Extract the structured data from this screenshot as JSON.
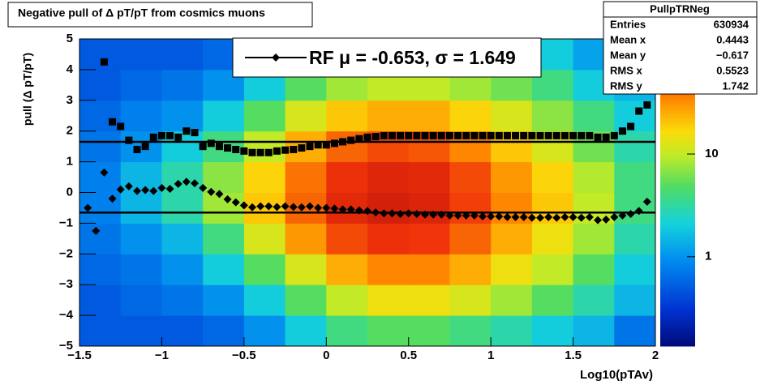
{
  "chart_data": {
    "type": "heatmap-profile",
    "title": "Negative pull of Δ pT/pT from cosmics muons",
    "x_label": "Log10(pTAv)",
    "y_label": "pull (Δ pT/pT)",
    "xlim": [
      -1.5,
      2
    ],
    "ylim": [
      -5,
      5
    ],
    "xticks": [
      {
        "value": -1.5,
        "label": "−1.5"
      },
      {
        "value": -1,
        "label": "−1"
      },
      {
        "value": -0.5,
        "label": "−0.5"
      },
      0,
      0.5,
      1,
      1.5,
      2
    ],
    "yticks": [
      {
        "value": -5,
        "label": "−5"
      },
      {
        "value": -4,
        "label": "−4"
      },
      {
        "value": -3,
        "label": "−3"
      },
      {
        "value": -2,
        "label": "−2"
      },
      {
        "value": -1,
        "label": "−1"
      },
      0,
      1,
      2,
      3,
      4,
      5
    ],
    "log_z": true,
    "zlim": [
      0.135,
      132
    ],
    "zticks": [
      1,
      10
    ],
    "xbins": [
      -1.5,
      -1.25,
      -1,
      -0.75,
      -0.5,
      -0.25,
      0,
      0.25,
      0.5,
      0.75,
      1,
      1.25,
      1.5,
      1.75,
      2
    ],
    "ybins": [
      -5,
      -4,
      -3,
      -2,
      -1,
      0,
      1,
      2,
      3,
      4,
      5
    ],
    "z": [
      [
        0.5,
        0.5,
        0.5,
        0.6,
        1,
        2,
        4,
        5,
        5,
        4,
        3,
        2,
        1.5,
        0.7
      ],
      [
        0.5,
        0.6,
        0.7,
        1,
        2,
        5,
        10,
        15,
        15,
        12,
        8,
        5,
        3,
        1.5
      ],
      [
        0.6,
        0.7,
        1,
        2,
        5,
        12,
        25,
        35,
        35,
        25,
        15,
        10,
        5,
        2
      ],
      [
        0.7,
        1,
        1.5,
        4,
        12,
        30,
        55,
        70,
        65,
        45,
        25,
        15,
        8,
        3
      ],
      [
        0.8,
        1.5,
        3,
        8,
        20,
        45,
        80,
        100,
        90,
        60,
        35,
        20,
        10,
        4
      ],
      [
        0.8,
        1.5,
        3,
        7,
        18,
        40,
        70,
        85,
        80,
        55,
        30,
        18,
        9,
        4
      ],
      [
        0.7,
        1,
        2,
        4,
        10,
        25,
        45,
        55,
        50,
        35,
        20,
        12,
        6,
        3
      ],
      [
        0.6,
        0.8,
        1,
        2,
        5,
        12,
        20,
        25,
        25,
        18,
        12,
        7,
        4,
        2
      ],
      [
        0.5,
        0.6,
        0.7,
        1,
        2,
        5,
        8,
        10,
        10,
        8,
        6,
        4,
        2,
        1.5
      ],
      [
        0.5,
        0.5,
        0.5,
        0.6,
        1,
        2,
        3,
        4,
        4,
        3,
        3,
        2,
        1.2,
        0.8
      ]
    ],
    "x": [
      -1.45,
      -1.4,
      -1.35,
      -1.3,
      -1.25,
      -1.2,
      -1.15,
      -1.1,
      -1.05,
      -1,
      -0.95,
      -0.9,
      -0.85,
      -0.8,
      -0.75,
      -0.7,
      -0.65,
      -0.6,
      -0.55,
      -0.5,
      -0.45,
      -0.4,
      -0.35,
      -0.3,
      -0.25,
      -0.2,
      -0.15,
      -0.1,
      -0.05,
      0,
      0.05,
      0.1,
      0.15,
      0.2,
      0.25,
      0.3,
      0.35,
      0.4,
      0.45,
      0.5,
      0.55,
      0.6,
      0.65,
      0.7,
      0.75,
      0.8,
      0.85,
      0.9,
      0.95,
      1,
      1.05,
      1.1,
      1.15,
      1.2,
      1.25,
      1.3,
      1.35,
      1.4,
      1.45,
      1.5,
      1.55,
      1.6,
      1.65,
      1.7,
      1.75,
      1.8,
      1.85,
      1.9,
      1.95
    ],
    "series": [
      {
        "marker": "square",
        "color": "#000000",
        "values": [
          null,
          null,
          4.25,
          2.3,
          2.15,
          1.7,
          1.4,
          1.5,
          1.8,
          1.85,
          1.85,
          1.8,
          2,
          1.95,
          1.5,
          1.6,
          1.5,
          1.45,
          1.4,
          1.35,
          1.3,
          1.3,
          1.3,
          1.35,
          1.38,
          1.4,
          1.45,
          1.5,
          1.55,
          1.55,
          1.6,
          1.65,
          1.7,
          1.75,
          1.8,
          1.82,
          1.85,
          1.85,
          1.85,
          1.85,
          1.85,
          1.85,
          1.85,
          1.85,
          1.85,
          1.85,
          1.85,
          1.85,
          1.85,
          1.85,
          1.85,
          1.85,
          1.85,
          1.85,
          1.85,
          1.85,
          1.85,
          1.85,
          1.85,
          1.85,
          1.85,
          1.85,
          1.8,
          1.8,
          1.85,
          2,
          2.15,
          2.65,
          2.85
        ]
      },
      {
        "marker": "diamond",
        "color": "#000000",
        "values": [
          -0.5,
          -1.25,
          0.65,
          -0.2,
          0.1,
          0.2,
          0.05,
          0.08,
          0.05,
          0.15,
          0.12,
          0.28,
          0.35,
          0.3,
          0.15,
          0.02,
          -0.05,
          -0.22,
          -0.32,
          -0.42,
          -0.48,
          -0.45,
          -0.45,
          -0.47,
          -0.45,
          -0.47,
          -0.48,
          -0.45,
          -0.5,
          -0.5,
          -0.52,
          -0.55,
          -0.55,
          -0.58,
          -0.6,
          -0.65,
          -0.68,
          -0.68,
          -0.7,
          -0.68,
          -0.7,
          -0.72,
          -0.72,
          -0.72,
          -0.75,
          -0.75,
          -0.75,
          -0.75,
          -0.78,
          -0.78,
          -0.78,
          -0.8,
          -0.8,
          -0.8,
          -0.82,
          -0.82,
          -0.8,
          -0.82,
          -0.8,
          -0.8,
          -0.82,
          -0.8,
          -0.9,
          -0.88,
          -0.8,
          -0.75,
          -0.7,
          -0.6,
          -0.3
        ]
      }
    ],
    "fit_lines": [
      -0.653,
      1.649
    ],
    "legend": "RF μ = -0.653, σ =   1.649",
    "stats": {
      "title": "PullpTRNeg",
      "rows": [
        [
          "Entries",
          "630934"
        ],
        [
          "Mean x",
          "0.4443"
        ],
        [
          "Mean y",
          "−0.617"
        ],
        [
          "RMS x",
          "0.5523"
        ],
        [
          "RMS y",
          "1.742"
        ]
      ]
    }
  }
}
